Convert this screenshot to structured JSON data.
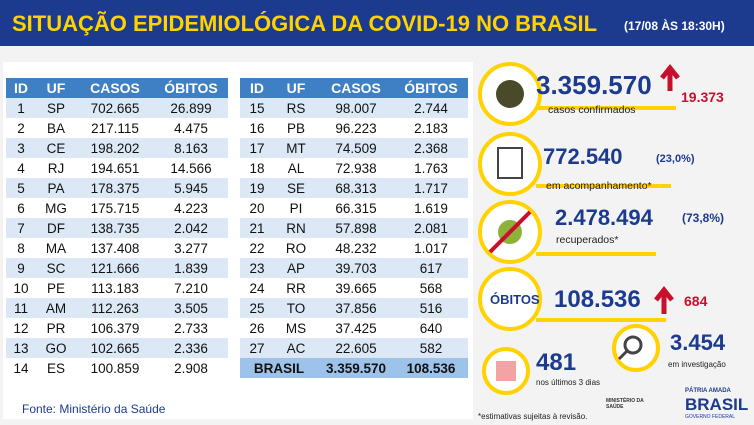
{
  "header": {
    "title": "SITUAÇÃO EPIDEMIOLÓGICA DA COVID-19 NO BRASIL",
    "date": "(17/08 ÀS 18:30H)"
  },
  "table_left": {
    "columns": [
      "ID",
      "UF",
      "CASOS",
      "ÓBITOS"
    ],
    "rows": [
      [
        "1",
        "SP",
        "702.665",
        "26.899"
      ],
      [
        "2",
        "BA",
        "217.115",
        "4.475"
      ],
      [
        "3",
        "CE",
        "198.202",
        "8.163"
      ],
      [
        "4",
        "RJ",
        "194.651",
        "14.566"
      ],
      [
        "5",
        "PA",
        "178.375",
        "5.945"
      ],
      [
        "6",
        "MG",
        "175.715",
        "4.223"
      ],
      [
        "7",
        "DF",
        "138.735",
        "2.042"
      ],
      [
        "8",
        "MA",
        "137.408",
        "3.277"
      ],
      [
        "9",
        "SC",
        "121.666",
        "1.839"
      ],
      [
        "10",
        "PE",
        "113.183",
        "7.210"
      ],
      [
        "11",
        "AM",
        "112.263",
        "3.505"
      ],
      [
        "12",
        "PR",
        "106.379",
        "2.733"
      ],
      [
        "13",
        "GO",
        "102.665",
        "2.336"
      ],
      [
        "14",
        "ES",
        "100.859",
        "2.908"
      ]
    ]
  },
  "table_right": {
    "columns": [
      "ID",
      "UF",
      "CASOS",
      "ÓBITOS"
    ],
    "rows": [
      [
        "15",
        "RS",
        "98.007",
        "2.744"
      ],
      [
        "16",
        "PB",
        "96.223",
        "2.183"
      ],
      [
        "17",
        "MT",
        "74.509",
        "2.368"
      ],
      [
        "18",
        "AL",
        "72.938",
        "1.763"
      ],
      [
        "19",
        "SE",
        "68.313",
        "1.717"
      ],
      [
        "20",
        "PI",
        "66.315",
        "1.619"
      ],
      [
        "21",
        "RN",
        "57.898",
        "2.081"
      ],
      [
        "22",
        "RO",
        "48.232",
        "1.017"
      ],
      [
        "23",
        "AP",
        "39.703",
        "617"
      ],
      [
        "24",
        "RR",
        "39.665",
        "568"
      ],
      [
        "25",
        "TO",
        "37.856",
        "516"
      ],
      [
        "26",
        "MS",
        "37.425",
        "640"
      ],
      [
        "27",
        "AC",
        "22.605",
        "582"
      ]
    ],
    "total": [
      "BRASIL",
      "3.359.570",
      "108.536"
    ]
  },
  "source": "Fonte: Ministério da Saúde",
  "stats": {
    "confirmed": {
      "value": "3.359.570",
      "label": "casos confirmados",
      "delta": "19.373"
    },
    "following": {
      "value": "772.540",
      "percent": "(23,0%)",
      "label": "em acompanhamento*"
    },
    "recovered": {
      "value": "2.478.494",
      "percent": "(73,8%)",
      "label": "recuperados*"
    },
    "deaths": {
      "label": "ÓBITOS",
      "value": "108.536",
      "delta": "684"
    },
    "investigation": {
      "value": "3.454",
      "label": "em investigação"
    },
    "last_days": {
      "value": "481",
      "label": "nos últimos 3 dias"
    }
  },
  "footnote": "*estimativas sujeitas à revisão.",
  "logo": {
    "ministry": "MINISTÉRIO DA SAÚDE",
    "motto": "PÁTRIA AMADA",
    "country": "BRASIL",
    "gov": "GOVERNO FEDERAL"
  }
}
